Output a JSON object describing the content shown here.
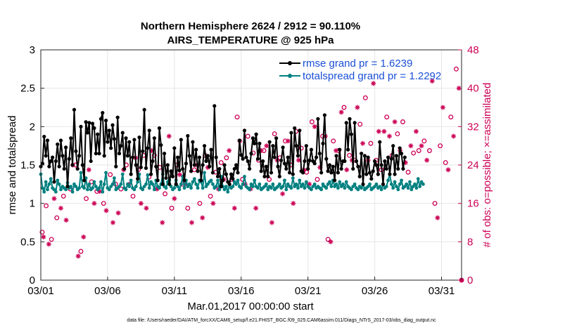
{
  "chart_data": {
    "type": "line",
    "title": [
      "Northern Hemisphere 2624 / 2912 = 90.110%",
      "AIRS_TEMPERATURE @ 925 hPa"
    ],
    "xlabel": "Mar.01,2017 00:00:00 start",
    "ylabel": "rmse and totalspread",
    "y2label": "# of obs: o=possible; ×=assimilated",
    "xlim": [
      0,
      31.5
    ],
    "ylim": [
      0,
      3
    ],
    "y2lim": [
      0,
      48
    ],
    "x_ticks": [
      {
        "value": 0,
        "label": "03/01"
      },
      {
        "value": 5,
        "label": "03/06"
      },
      {
        "value": 10,
        "label": "03/11"
      },
      {
        "value": 15,
        "label": "03/16"
      },
      {
        "value": 20,
        "label": "03/21"
      },
      {
        "value": 25,
        "label": "03/26"
      },
      {
        "value": 30,
        "label": "03/31"
      }
    ],
    "y_ticks": [
      {
        "value": 0,
        "label": "0"
      },
      {
        "value": 0.5,
        "label": "0.5"
      },
      {
        "value": 1,
        "label": "1"
      },
      {
        "value": 1.5,
        "label": "1.5"
      },
      {
        "value": 2,
        "label": "2"
      },
      {
        "value": 2.5,
        "label": "2.5"
      },
      {
        "value": 3,
        "label": "3"
      }
    ],
    "y2_ticks": [
      {
        "value": 0,
        "label": "0"
      },
      {
        "value": 8,
        "label": "8"
      },
      {
        "value": 16,
        "label": "16"
      },
      {
        "value": 24,
        "label": "24"
      },
      {
        "value": 32,
        "label": "32"
      },
      {
        "value": 40,
        "label": "40"
      },
      {
        "value": 48,
        "label": "48"
      }
    ],
    "grid": true,
    "legend": "top-right",
    "x_step": 0.125,
    "series": [
      {
        "name": "rmse grand pr = 1.6239",
        "color": "#000000",
        "marker": "asterisk",
        "values": [
          1.48,
          1.52,
          1.87,
          1.62,
          1.82,
          1.48,
          1.55,
          1.6,
          1.28,
          1.55,
          1.77,
          1.48,
          1.82,
          1.62,
          1.45,
          1.73,
          1.22,
          1.58,
          1.85,
          1.5,
          2.22,
          1.68,
          1.45,
          1.62,
          2.0,
          1.5,
          1.3,
          2.06,
          1.92,
          2.05,
          1.55,
          2.04,
          1.98,
          1.65,
          1.9,
          1.65,
          2.1,
          2.18,
          1.62,
          2.08,
          1.8,
          1.95,
          1.72,
          2.02,
          1.84,
          1.48,
          2.12,
          1.65,
          1.75,
          1.92,
          1.45,
          1.85,
          1.62,
          1.8,
          1.38,
          1.6,
          1.83,
          1.5,
          1.32,
          1.86,
          1.47,
          1.68,
          2.22,
          1.46,
          1.72,
          1.95,
          1.38,
          1.55,
          1.85,
          1.48,
          1.3,
          1.98,
          1.76,
          1.25,
          1.65,
          1.33,
          1.5,
          1.25,
          1.42,
          1.35,
          1.72,
          1.25,
          1.6,
          1.43,
          1.83,
          1.45,
          1.3,
          1.52,
          1.88,
          1.62,
          1.42,
          1.8,
          1.5,
          1.7,
          1.42,
          1.6,
          1.3,
          1.5,
          1.75,
          1.55,
          1.62,
          1.48,
          1.7,
          1.4,
          2.27,
          1.6,
          1.35,
          1.45,
          1.22,
          1.3,
          1.5,
          1.38,
          1.28,
          1.25,
          1.38,
          1.32,
          1.45,
          1.5,
          1.4,
          1.82,
          1.63,
          1.58,
          1.95,
          1.6,
          1.55,
          1.45,
          1.65,
          1.85,
          1.78,
          1.9,
          1.58,
          1.78,
          1.42,
          1.55,
          1.35,
          1.48,
          1.35,
          1.8,
          1.4,
          1.75,
          1.6,
          1.85,
          1.48,
          1.35,
          1.56,
          1.73,
          1.52,
          1.45,
          1.6,
          1.4,
          1.92,
          1.38,
          1.98,
          1.75,
          1.62,
          1.95,
          1.42,
          1.4,
          1.55,
          1.75,
          1.45,
          1.56,
          1.7,
          1.55,
          1.52,
          1.6,
          2.1,
          1.65,
          1.4,
          1.78,
          2.15,
          1.58,
          1.42,
          1.5,
          1.4,
          1.48,
          1.3,
          1.62,
          1.4,
          1.7,
          1.45,
          1.55,
          1.55,
          2.05,
          1.7,
          2.1,
          1.9,
          1.45,
          2.05,
          1.55,
          1.48,
          1.35,
          1.65,
          1.25,
          1.62,
          1.38,
          1.6,
          1.4,
          1.32,
          1.42,
          1.55,
          1.5,
          1.38,
          1.8,
          1.5,
          1.25,
          1.55,
          1.45,
          1.6,
          1.38,
          1.58,
          1.75,
          1.38,
          1.62,
          1.45,
          1.72,
          1.65,
          1.45,
          1.6
        ]
      },
      {
        "name": "totalspread grand pr = 1.2292",
        "color": "#008080",
        "marker": "circle",
        "values": [
          1.38,
          1.2,
          1.15,
          1.28,
          1.18,
          1.25,
          1.32,
          1.2,
          1.18,
          1.15,
          1.3,
          1.25,
          1.18,
          1.22,
          1.2,
          1.18,
          1.27,
          1.2,
          1.22,
          1.15,
          1.25,
          1.22,
          1.18,
          1.2,
          1.4,
          1.22,
          1.2,
          1.33,
          1.18,
          1.25,
          1.18,
          1.2,
          1.28,
          1.22,
          1.18,
          1.2,
          1.28,
          1.15,
          1.25,
          1.4,
          1.2,
          1.18,
          1.22,
          1.25,
          1.33,
          1.18,
          1.2,
          1.22,
          1.25,
          1.38,
          1.2,
          1.18,
          1.25,
          1.22,
          1.3,
          1.2,
          1.18,
          1.22,
          1.28,
          1.38,
          1.2,
          1.18,
          1.22,
          1.25,
          1.37,
          1.2,
          1.28,
          1.25,
          1.18,
          1.3,
          1.22,
          1.2,
          1.25,
          1.38,
          1.22,
          1.2,
          1.28,
          1.3,
          1.22,
          1.18,
          1.2,
          1.3,
          1.22,
          1.18,
          1.25,
          1.35,
          1.2,
          1.3,
          1.22,
          1.25,
          1.2,
          1.28,
          1.32,
          1.25,
          1.2,
          1.3,
          1.28,
          1.2,
          1.4,
          1.22,
          1.25,
          1.28,
          1.3,
          1.25,
          1.2,
          1.22,
          1.3,
          1.18,
          1.35,
          1.22,
          1.18,
          1.22,
          1.15,
          1.25,
          1.2,
          1.22,
          1.28,
          1.25,
          1.3,
          1.22,
          1.2,
          1.25,
          1.35,
          1.22,
          1.2,
          1.18,
          1.25,
          1.22,
          1.3,
          1.22,
          1.2,
          1.25,
          1.18,
          1.2,
          1.22,
          1.25,
          1.18,
          1.22,
          1.2,
          1.25,
          1.18,
          1.2,
          1.22,
          1.25,
          1.2,
          1.22,
          1.3,
          1.18,
          1.25,
          1.22,
          1.2,
          1.33,
          1.22,
          1.25,
          1.2,
          1.3,
          1.22,
          1.25,
          1.2,
          1.28,
          1.22,
          1.2,
          1.18,
          1.22,
          1.25,
          1.2,
          1.22,
          1.2,
          1.18,
          1.25,
          1.22,
          1.2,
          1.25,
          1.28,
          1.22,
          1.3,
          1.22,
          1.25,
          1.2,
          1.28,
          1.22,
          1.25,
          1.2,
          1.28,
          1.22,
          1.2,
          1.18,
          1.22,
          1.25,
          1.2,
          1.18,
          1.22,
          1.2,
          1.25,
          1.18,
          1.2,
          1.22,
          1.25,
          1.18,
          1.2,
          1.22,
          1.25,
          1.2,
          1.22,
          1.18,
          1.25,
          1.2,
          1.22,
          1.3,
          1.38,
          1.25,
          1.2,
          1.28,
          1.22,
          1.18,
          1.25,
          1.3,
          1.2,
          1.22,
          1.25,
          1.2,
          1.28,
          1.18,
          1.22,
          1.25,
          1.2,
          1.32,
          1.22,
          1.28,
          1.25
        ]
      },
      {
        "name": "possible obs",
        "axis": "right",
        "color": "#cc0055",
        "marker": "circle-open",
        "x": [
          0.1,
          0.4,
          0.8,
          1.2,
          1.7,
          2.2,
          2.6,
          3.0,
          3.4,
          3.8,
          4.2,
          4.7,
          5.2,
          5.6,
          6.0,
          6.4,
          6.9,
          7.3,
          7.7,
          8.1,
          8.5,
          8.9,
          9.3,
          9.8,
          10.2,
          10.6,
          11.0,
          11.5,
          11.9,
          12.3,
          12.7,
          13.1,
          13.5,
          13.9,
          14.3,
          14.7,
          15.1,
          15.5,
          15.9,
          16.3,
          16.7,
          17.1,
          17.5,
          17.9,
          18.3,
          18.7,
          19.1,
          19.5,
          19.9,
          20.3,
          20.7,
          21.1,
          21.5,
          21.9,
          22.3,
          22.7,
          23.1,
          23.5,
          23.9,
          24.3,
          24.7,
          25.1,
          25.5,
          25.9,
          26.3,
          26.7,
          27.1,
          27.5,
          27.9,
          28.3,
          28.7,
          29.1,
          29.5,
          29.9,
          30.3,
          30.7,
          31.1
        ],
        "values": [
          10.0,
          15.5,
          8.5,
          13.0,
          17.5,
          19.0,
          24.0,
          6.0,
          17.0,
          20.5,
          18.5,
          16.0,
          22.0,
          20.0,
          19.0,
          24.0,
          17.5,
          23.0,
          26.0,
          21.5,
          26.0,
          23.5,
          18.0,
          15.0,
          24.0,
          20.0,
          15.0,
          23.0,
          16.0,
          26.0,
          17.5,
          22.5,
          24.5,
          25.5,
          21.0,
          34.0,
          21.0,
          30.0,
          26.5,
          25.0,
          27.0,
          21.0,
          30.5,
          25.5,
          29.0,
          24.0,
          31.0,
          27.5,
          22.5,
          33.0,
          21.0,
          30.0,
          8.5,
          29.0,
          27.0,
          36.0,
          26.0,
          25.0,
          32.5,
          38.0,
          28.5,
          25.0,
          23.0,
          34.0,
          26.0,
          30.5,
          33.0,
          22.5,
          26.5,
          27.0,
          29.0,
          27.0,
          16.0,
          28.0,
          24.5,
          34.0,
          44.0
        ]
      },
      {
        "name": "assimilated obs",
        "axis": "right",
        "color": "#cc0055",
        "marker": "asterisk-cross",
        "x": [
          0.2,
          0.6,
          1.0,
          1.5,
          1.9,
          2.4,
          2.8,
          3.2,
          3.6,
          4.0,
          4.4,
          4.9,
          5.4,
          5.8,
          6.2,
          6.6,
          7.1,
          7.5,
          7.9,
          8.3,
          8.7,
          9.1,
          9.6,
          10.0,
          10.4,
          10.8,
          11.3,
          11.7,
          12.1,
          12.5,
          12.9,
          13.3,
          13.7,
          14.1,
          14.5,
          14.9,
          15.3,
          15.7,
          16.1,
          16.5,
          16.9,
          17.3,
          17.7,
          18.1,
          18.5,
          18.9,
          19.3,
          19.7,
          20.1,
          20.5,
          20.9,
          21.3,
          21.7,
          22.1,
          22.5,
          22.9,
          23.3,
          23.7,
          24.1,
          24.5,
          24.9,
          25.3,
          25.7,
          26.1,
          26.5,
          26.9,
          27.3,
          27.7,
          28.1,
          28.5,
          28.9,
          29.3,
          29.7,
          30.1,
          30.5,
          30.9,
          31.3
        ],
        "values": [
          9.0,
          7.5,
          17.0,
          15.0,
          12.5,
          24.0,
          5.0,
          9.0,
          23.0,
          16.0,
          18.5,
          14.5,
          12.0,
          14.0,
          23.0,
          20.0,
          25.5,
          16.0,
          15.0,
          27.0,
          19.0,
          12.0,
          30.0,
          17.0,
          22.0,
          20.0,
          12.0,
          24.0,
          13.0,
          23.5,
          16.0,
          19.0,
          21.0,
          27.0,
          15.0,
          29.0,
          20.0,
          19.0,
          15.0,
          27.0,
          28.0,
          12.0,
          25.0,
          18.0,
          29.0,
          16.0,
          25.0,
          23.0,
          20.0,
          32.0,
          23.5,
          30.0,
          8.0,
          27.0,
          35.0,
          23.0,
          25.0,
          36.0,
          28.5,
          25.0,
          41.0,
          31.0,
          31.0,
          30.0,
          33.0,
          27.0,
          24.5,
          28.0,
          31.0,
          28.0,
          25.0,
          41.5,
          13.0,
          36.0,
          23.0,
          30.0,
          40.0
        ]
      }
    ]
  },
  "footer_text": "data file: /Users/raeder/DAI/ATM_forcXX/CAM6_setup/f.e21.FHIST_BGC.f09_025.CAM6assim.011/Diags_NTrS_2017-03/obs_diag_output.nc"
}
